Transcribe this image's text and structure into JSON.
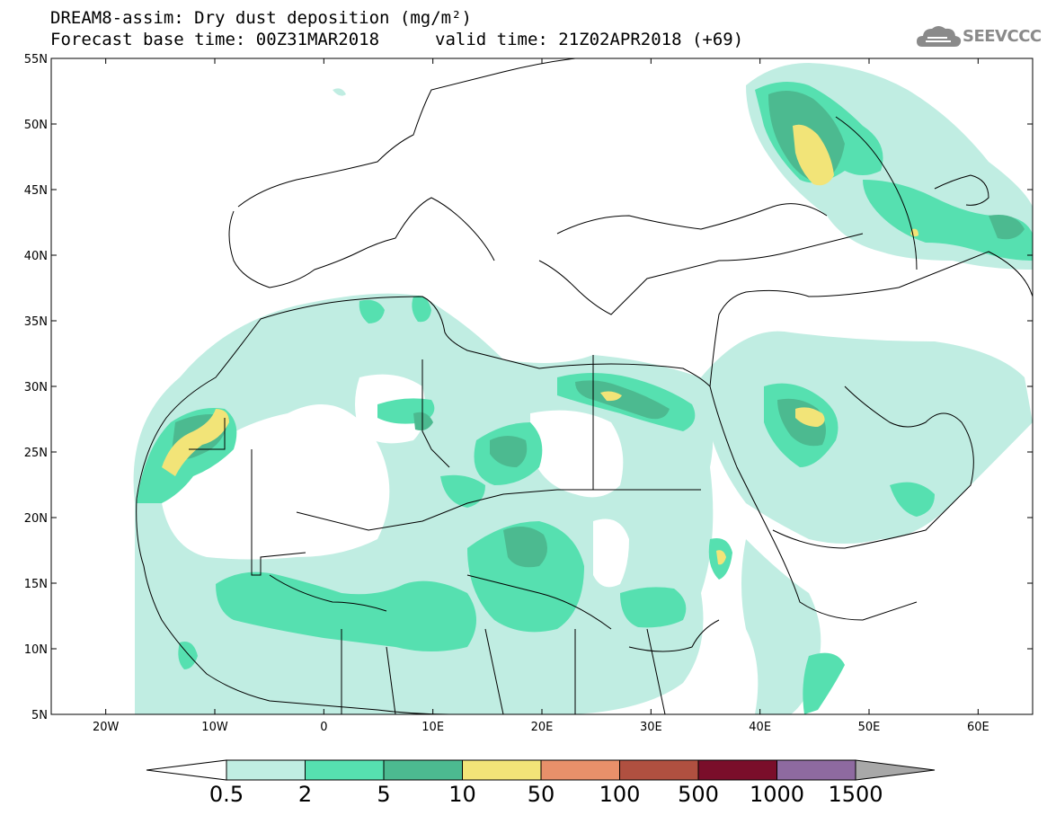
{
  "header": {
    "title_line1": "DREAM8-assim: Dry dust deposition (mg/m²)",
    "title_line2a": "Forecast base time: 00Z31MAR2018",
    "title_line2b": "valid time: 21Z02APR2018 (+69)",
    "logo_text": "SEEVCCC"
  },
  "axes": {
    "lat_labels": [
      "55N",
      "50N",
      "45N",
      "40N",
      "35N",
      "30N",
      "25N",
      "20N",
      "15N",
      "10N",
      "5N"
    ],
    "lon_labels": [
      "20W",
      "10W",
      "0",
      "10E",
      "20E",
      "30E",
      "40E",
      "50E",
      "60E"
    ],
    "lon_range": [
      -25,
      65
    ],
    "lat_range": [
      5,
      55
    ]
  },
  "legend": {
    "labels": [
      "0.5",
      "2",
      "5",
      "10",
      "50",
      "100",
      "500",
      "1000",
      "1500"
    ],
    "colors": [
      "#c0ede2",
      "#56e0b0",
      "#4cba90",
      "#f2e478",
      "#e8906a",
      "#b05040",
      "#7a0e2a",
      "#8e6aa0",
      "#a8a8a8"
    ]
  },
  "palette": {
    "light": "#c0ede2",
    "mid": "#56e0b0",
    "dark": "#4cba90",
    "yellow": "#f2e478"
  }
}
